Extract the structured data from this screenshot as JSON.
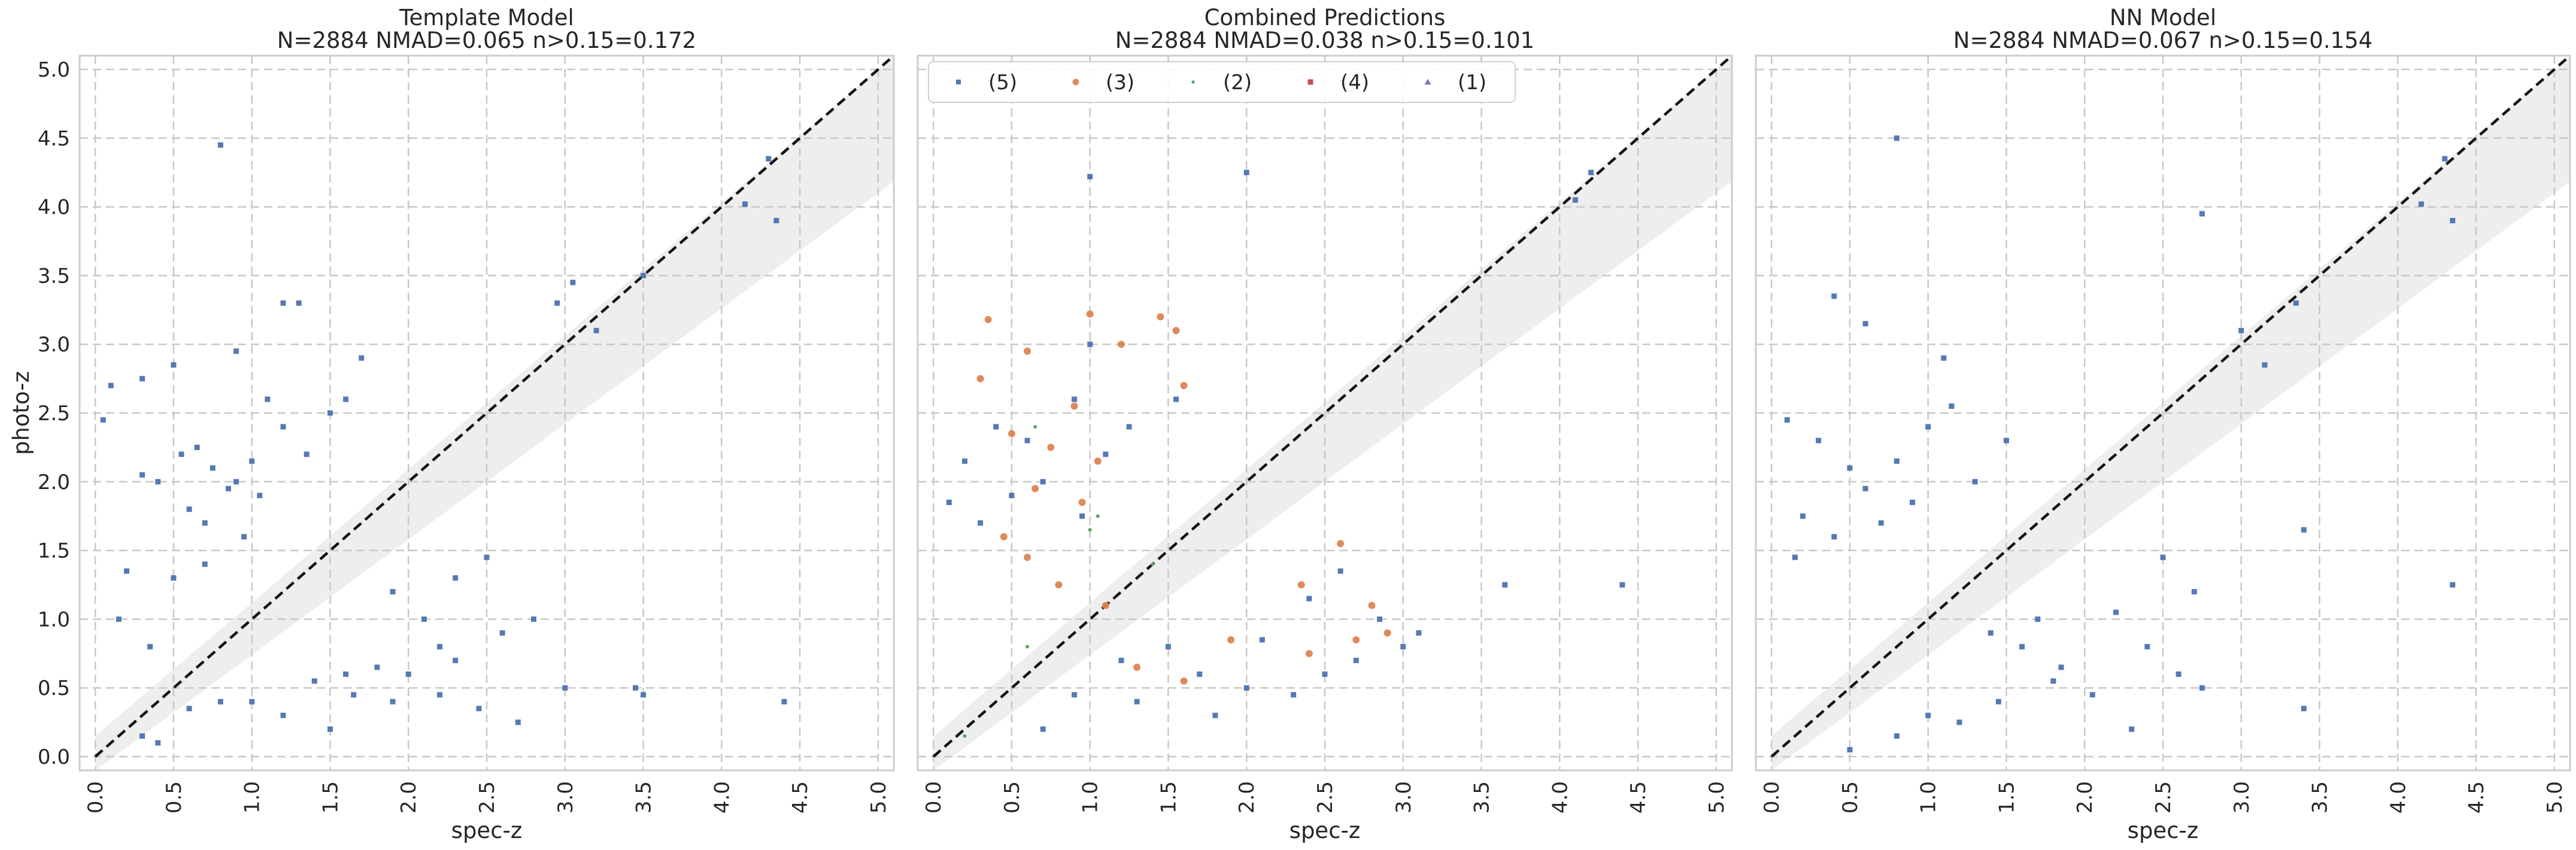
{
  "chart_data": [
    {
      "type": "scatter",
      "title": "Template Model",
      "subtitle": "N=2884 NMAD=0.065 n>0.15=0.172",
      "xlabel": "spec-z",
      "ylabel": "photo-z",
      "xlim": [
        -0.1,
        5.1
      ],
      "ylim": [
        -0.1,
        5.1
      ],
      "xticks": [
        "0.0",
        "0.5",
        "1.0",
        "1.5",
        "2.0",
        "2.5",
        "3.0",
        "3.5",
        "4.0",
        "4.5",
        "5.0"
      ],
      "yticks": [
        "0.0",
        "0.5",
        "1.0",
        "1.5",
        "2.0",
        "2.5",
        "3.0",
        "3.5",
        "4.0",
        "4.5",
        "5.0"
      ],
      "grid": true,
      "reference_line": "y = x (dashed)",
      "band": "|Δz| < 0.15(1+z) shaded",
      "series": [
        {
          "label": "(5)",
          "color": "#4c72b0",
          "marker": "x-square",
          "points": [
            [
              0.8,
              4.45
            ],
            [
              4.15,
              4.02
            ],
            [
              4.35,
              3.9
            ],
            [
              4.3,
              4.35
            ],
            [
              3.5,
              3.5
            ],
            [
              3.2,
              3.1
            ],
            [
              3.05,
              3.45
            ],
            [
              2.95,
              3.3
            ],
            [
              1.2,
              3.3
            ],
            [
              1.3,
              3.3
            ],
            [
              0.9,
              2.95
            ],
            [
              0.5,
              2.85
            ],
            [
              0.3,
              2.75
            ],
            [
              0.1,
              2.7
            ],
            [
              0.05,
              2.45
            ],
            [
              0.55,
              2.2
            ],
            [
              0.65,
              2.25
            ],
            [
              0.75,
              2.1
            ],
            [
              0.9,
              2.0
            ],
            [
              1.0,
              2.15
            ],
            [
              0.3,
              2.05
            ],
            [
              0.4,
              2.0
            ],
            [
              0.6,
              1.8
            ],
            [
              0.7,
              1.7
            ],
            [
              0.85,
              1.95
            ],
            [
              1.1,
              2.6
            ],
            [
              1.2,
              2.4
            ],
            [
              1.5,
              2.5
            ],
            [
              1.35,
              2.2
            ],
            [
              1.05,
              1.9
            ],
            [
              0.95,
              1.6
            ],
            [
              3.0,
              0.5
            ],
            [
              3.45,
              0.5
            ],
            [
              3.5,
              0.45
            ],
            [
              4.4,
              0.4
            ],
            [
              2.7,
              0.25
            ],
            [
              2.45,
              0.35
            ],
            [
              2.2,
              0.45
            ],
            [
              2.0,
              0.6
            ],
            [
              1.8,
              0.65
            ],
            [
              1.6,
              0.6
            ],
            [
              1.4,
              0.55
            ],
            [
              1.65,
              0.45
            ],
            [
              1.9,
              0.4
            ],
            [
              2.3,
              0.7
            ],
            [
              1.0,
              0.4
            ],
            [
              0.8,
              0.4
            ],
            [
              0.6,
              0.35
            ],
            [
              1.2,
              0.3
            ],
            [
              1.5,
              0.2
            ],
            [
              0.4,
              0.1
            ],
            [
              0.3,
              0.15
            ],
            [
              1.9,
              1.2
            ],
            [
              2.1,
              1.0
            ],
            [
              2.3,
              1.3
            ],
            [
              2.5,
              1.45
            ],
            [
              2.6,
              0.9
            ],
            [
              2.8,
              1.0
            ],
            [
              2.2,
              0.8
            ],
            [
              0.15,
              1.0
            ],
            [
              0.35,
              0.8
            ],
            [
              0.2,
              1.35
            ],
            [
              0.5,
              1.3
            ],
            [
              0.7,
              1.4
            ],
            [
              1.7,
              2.9
            ],
            [
              1.6,
              2.6
            ]
          ]
        }
      ]
    },
    {
      "type": "scatter",
      "title": "Combined Predictions",
      "subtitle": "N=2884 NMAD=0.038 n>0.15=0.101",
      "xlabel": "spec-z",
      "ylabel": "",
      "xlim": [
        -0.1,
        5.1
      ],
      "ylim": [
        -0.1,
        5.1
      ],
      "xticks": [
        "0.0",
        "0.5",
        "1.0",
        "1.5",
        "2.0",
        "2.5",
        "3.0",
        "3.5",
        "4.0",
        "4.5",
        "5.0"
      ],
      "grid": true,
      "reference_line": "y = x (dashed)",
      "band": "|Δz| < 0.15(1+z) shaded",
      "legend_position": "top-left",
      "series": [
        {
          "label": "(5)",
          "color": "#4c72b0",
          "marker": "x-square",
          "points": [
            [
              1.0,
              4.22
            ],
            [
              2.0,
              4.25
            ],
            [
              4.2,
              4.25
            ],
            [
              4.1,
              4.05
            ],
            [
              3.65,
              1.25
            ],
            [
              4.4,
              1.25
            ],
            [
              1.0,
              3.0
            ],
            [
              0.9,
              2.6
            ],
            [
              0.6,
              2.3
            ],
            [
              0.4,
              2.4
            ],
            [
              0.2,
              2.15
            ],
            [
              0.1,
              1.85
            ],
            [
              0.3,
              1.7
            ],
            [
              0.5,
              1.9
            ],
            [
              0.7,
              2.0
            ],
            [
              0.95,
              1.75
            ],
            [
              1.1,
              2.2
            ],
            [
              1.25,
              2.4
            ],
            [
              1.55,
              2.6
            ],
            [
              1.5,
              0.8
            ],
            [
              1.7,
              0.6
            ],
            [
              2.0,
              0.5
            ],
            [
              2.3,
              0.45
            ],
            [
              2.5,
              0.6
            ],
            [
              2.7,
              0.7
            ],
            [
              2.1,
              0.85
            ],
            [
              2.4,
              1.15
            ],
            [
              2.6,
              1.35
            ],
            [
              2.85,
              1.0
            ],
            [
              3.0,
              0.8
            ],
            [
              3.1,
              0.9
            ],
            [
              1.2,
              0.7
            ],
            [
              0.9,
              0.45
            ],
            [
              0.7,
              0.2
            ],
            [
              1.3,
              0.4
            ],
            [
              1.8,
              0.3
            ]
          ]
        },
        {
          "label": "(3)",
          "color": "#dd8452",
          "marker": "circle",
          "points": [
            [
              0.35,
              3.18
            ],
            [
              1.0,
              3.22
            ],
            [
              1.2,
              3.0
            ],
            [
              1.45,
              3.2
            ],
            [
              1.55,
              3.1
            ],
            [
              0.6,
              2.95
            ],
            [
              0.3,
              2.75
            ],
            [
              1.6,
              2.7
            ],
            [
              0.9,
              2.55
            ],
            [
              0.5,
              2.35
            ],
            [
              0.75,
              2.25
            ],
            [
              1.05,
              2.15
            ],
            [
              0.65,
              1.95
            ],
            [
              0.95,
              1.85
            ],
            [
              0.45,
              1.6
            ],
            [
              0.6,
              1.45
            ],
            [
              0.8,
              1.25
            ],
            [
              1.1,
              1.1
            ],
            [
              2.8,
              1.1
            ],
            [
              2.6,
              1.55
            ],
            [
              2.7,
              0.85
            ],
            [
              2.4,
              0.75
            ],
            [
              2.35,
              1.25
            ],
            [
              2.9,
              0.9
            ],
            [
              1.6,
              0.55
            ],
            [
              1.3,
              0.65
            ],
            [
              1.9,
              0.85
            ]
          ]
        },
        {
          "label": "(2)",
          "color": "#55a868",
          "marker": "dot",
          "points": [
            [
              0.65,
              2.4
            ],
            [
              1.05,
              1.75
            ],
            [
              1.0,
              1.65
            ],
            [
              1.4,
              1.4
            ],
            [
              0.6,
              0.8
            ],
            [
              0.2,
              0.15
            ]
          ]
        },
        {
          "label": "(4)",
          "color": "#c44e52",
          "marker": "square",
          "points": []
        },
        {
          "label": "(1)",
          "color": "#8172b3",
          "marker": "triangle",
          "points": []
        }
      ]
    },
    {
      "type": "scatter",
      "title": "NN Model",
      "subtitle": "N=2884 NMAD=0.067 n>0.15=0.154",
      "xlabel": "spec-z",
      "ylabel": "",
      "xlim": [
        -0.1,
        5.1
      ],
      "ylim": [
        -0.1,
        5.1
      ],
      "xticks": [
        "0.0",
        "0.5",
        "1.0",
        "1.5",
        "2.0",
        "2.5",
        "3.0",
        "3.5",
        "4.0",
        "4.5",
        "5.0"
      ],
      "grid": true,
      "reference_line": "y = x (dashed)",
      "band": "|Δz| < 0.15(1+z) shaded",
      "series": [
        {
          "label": "(5)",
          "color": "#4c72b0",
          "marker": "x-square",
          "points": [
            [
              0.8,
              4.5
            ],
            [
              2.75,
              3.95
            ],
            [
              4.15,
              4.02
            ],
            [
              4.3,
              4.35
            ],
            [
              4.35,
              3.9
            ],
            [
              3.35,
              3.3
            ],
            [
              3.0,
              3.1
            ],
            [
              3.15,
              2.85
            ],
            [
              0.4,
              3.35
            ],
            [
              0.6,
              3.15
            ],
            [
              0.1,
              2.45
            ],
            [
              0.3,
              2.3
            ],
            [
              0.5,
              2.1
            ],
            [
              0.6,
              1.95
            ],
            [
              0.8,
              2.15
            ],
            [
              1.0,
              2.4
            ],
            [
              1.15,
              2.55
            ],
            [
              1.3,
              2.0
            ],
            [
              0.9,
              1.85
            ],
            [
              0.7,
              1.7
            ],
            [
              0.4,
              1.6
            ],
            [
              0.2,
              1.75
            ],
            [
              0.15,
              1.45
            ],
            [
              1.5,
              2.3
            ],
            [
              1.1,
              2.9
            ],
            [
              3.4,
              1.65
            ],
            [
              4.35,
              1.25
            ],
            [
              3.4,
              0.35
            ],
            [
              2.75,
              0.5
            ],
            [
              2.6,
              0.6
            ],
            [
              2.4,
              0.8
            ],
            [
              2.2,
              1.05
            ],
            [
              2.05,
              0.45
            ],
            [
              1.85,
              0.65
            ],
            [
              1.6,
              0.8
            ],
            [
              1.45,
              0.4
            ],
            [
              1.2,
              0.25
            ],
            [
              1.0,
              0.3
            ],
            [
              0.8,
              0.15
            ],
            [
              0.5,
              0.05
            ],
            [
              2.3,
              0.2
            ],
            [
              1.8,
              0.55
            ],
            [
              2.5,
              1.45
            ],
            [
              2.7,
              1.2
            ],
            [
              1.7,
              1.0
            ],
            [
              1.4,
              0.9
            ]
          ]
        }
      ]
    }
  ]
}
